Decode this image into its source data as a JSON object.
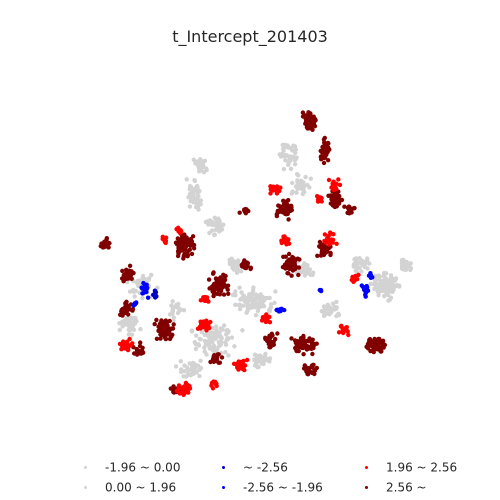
{
  "title": "t_Intercept_201403",
  "legend": [
    {
      "label": "-1.96 ~ 0.00",
      "color": "#d3d3d3"
    },
    {
      "label": "0.00 ~ 1.96",
      "color": "#d3d3d3"
    },
    {
      "label": "~ -2.56",
      "color": "#0000cd"
    },
    {
      "label": "-2.56 ~ -1.96",
      "color": "#0000ff"
    },
    {
      "label": "1.96 ~ 2.56",
      "color": "#ff0000"
    },
    {
      "label": "2.56 ~",
      "color": "#800000"
    }
  ],
  "colors": {
    "not_significant": "#d3d3d3",
    "negative_strong": "#0000cd",
    "negative": "#0000ff",
    "positive": "#ff0000",
    "positive_strong": "#800000"
  }
}
